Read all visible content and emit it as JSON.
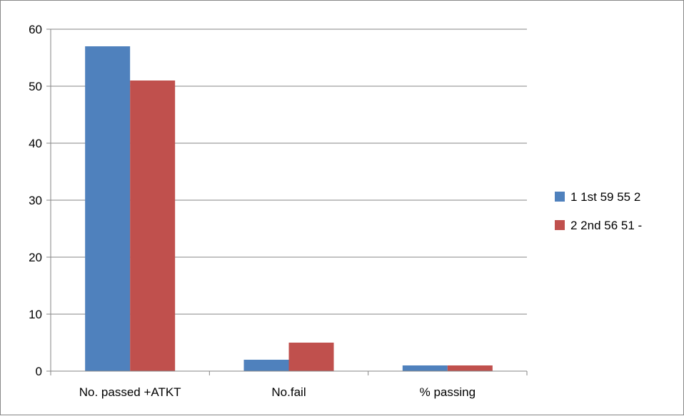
{
  "chart_data": {
    "type": "bar",
    "title": "",
    "xlabel": "",
    "ylabel": "",
    "categories": [
      "No. passed +ATKT",
      "No.fail",
      "% passing"
    ],
    "series": [
      {
        "name": "1 1st 59 55 2",
        "values": [
          57,
          2,
          1
        ],
        "color": "#4f81bd"
      },
      {
        "name": "2 2nd 56 51 -",
        "values": [
          51,
          5,
          1
        ],
        "color": "#c0504d"
      }
    ],
    "ylim": [
      0,
      60
    ],
    "yticks": [
      0,
      10,
      20,
      30,
      40,
      50,
      60
    ],
    "grid": true,
    "legend_position": "right"
  }
}
